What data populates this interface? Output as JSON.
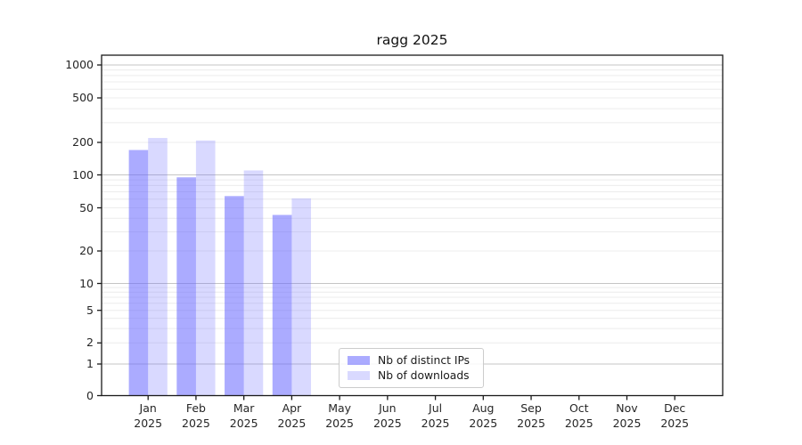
{
  "chart_data": {
    "type": "bar",
    "title": "ragg 2025",
    "year_label": "2025",
    "categories": [
      "Jan",
      "Feb",
      "Mar",
      "Apr",
      "May",
      "Jun",
      "Jul",
      "Aug",
      "Sep",
      "Oct",
      "Nov",
      "Dec"
    ],
    "series": [
      {
        "name": "Nb of distinct IPs",
        "color": "rgba(102,102,255,0.55)",
        "values": [
          170,
          95,
          64,
          43,
          null,
          null,
          null,
          null,
          null,
          null,
          null,
          null
        ]
      },
      {
        "name": "Nb of downloads",
        "color": "rgba(102,102,255,0.25)",
        "values": [
          219,
          208,
          110,
          61,
          null,
          null,
          null,
          null,
          null,
          null,
          null,
          null
        ]
      }
    ],
    "y_ticks": [
      0,
      1,
      2,
      5,
      10,
      20,
      50,
      100,
      200,
      500,
      1000
    ],
    "scale": "symlog",
    "ylim": [
      0,
      1200
    ],
    "grid": true,
    "legend_position": "lower center",
    "colors": {
      "bar_base": "#6666ff",
      "grid_major_decade": "#c5c5c5",
      "grid_minor": "#ececec",
      "axis": "#1a1a1a"
    }
  }
}
